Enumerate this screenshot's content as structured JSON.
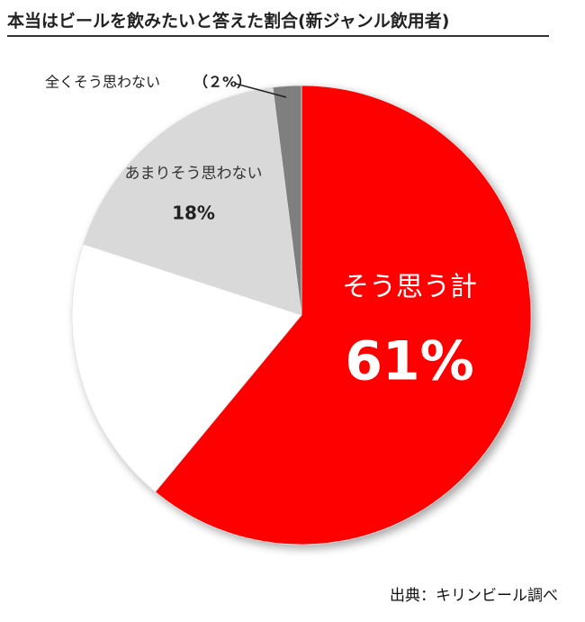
{
  "chart_data": {
    "type": "pie",
    "title": "本当はビールを飲みたいと答えた割合(新ジャンル飲用者)",
    "categories": [
      "そう思う計",
      null,
      "あまりそう思わない",
      "全くそう思わない"
    ],
    "values": [
      61,
      19,
      18,
      2
    ],
    "value_labels": [
      "61%",
      null,
      "18%",
      "（２%）"
    ],
    "colors": [
      "#ff0000",
      "#ffffff",
      "#d9d9d9",
      "#7f7f7f"
    ],
    "source": "出典：キリンビール調べ"
  }
}
